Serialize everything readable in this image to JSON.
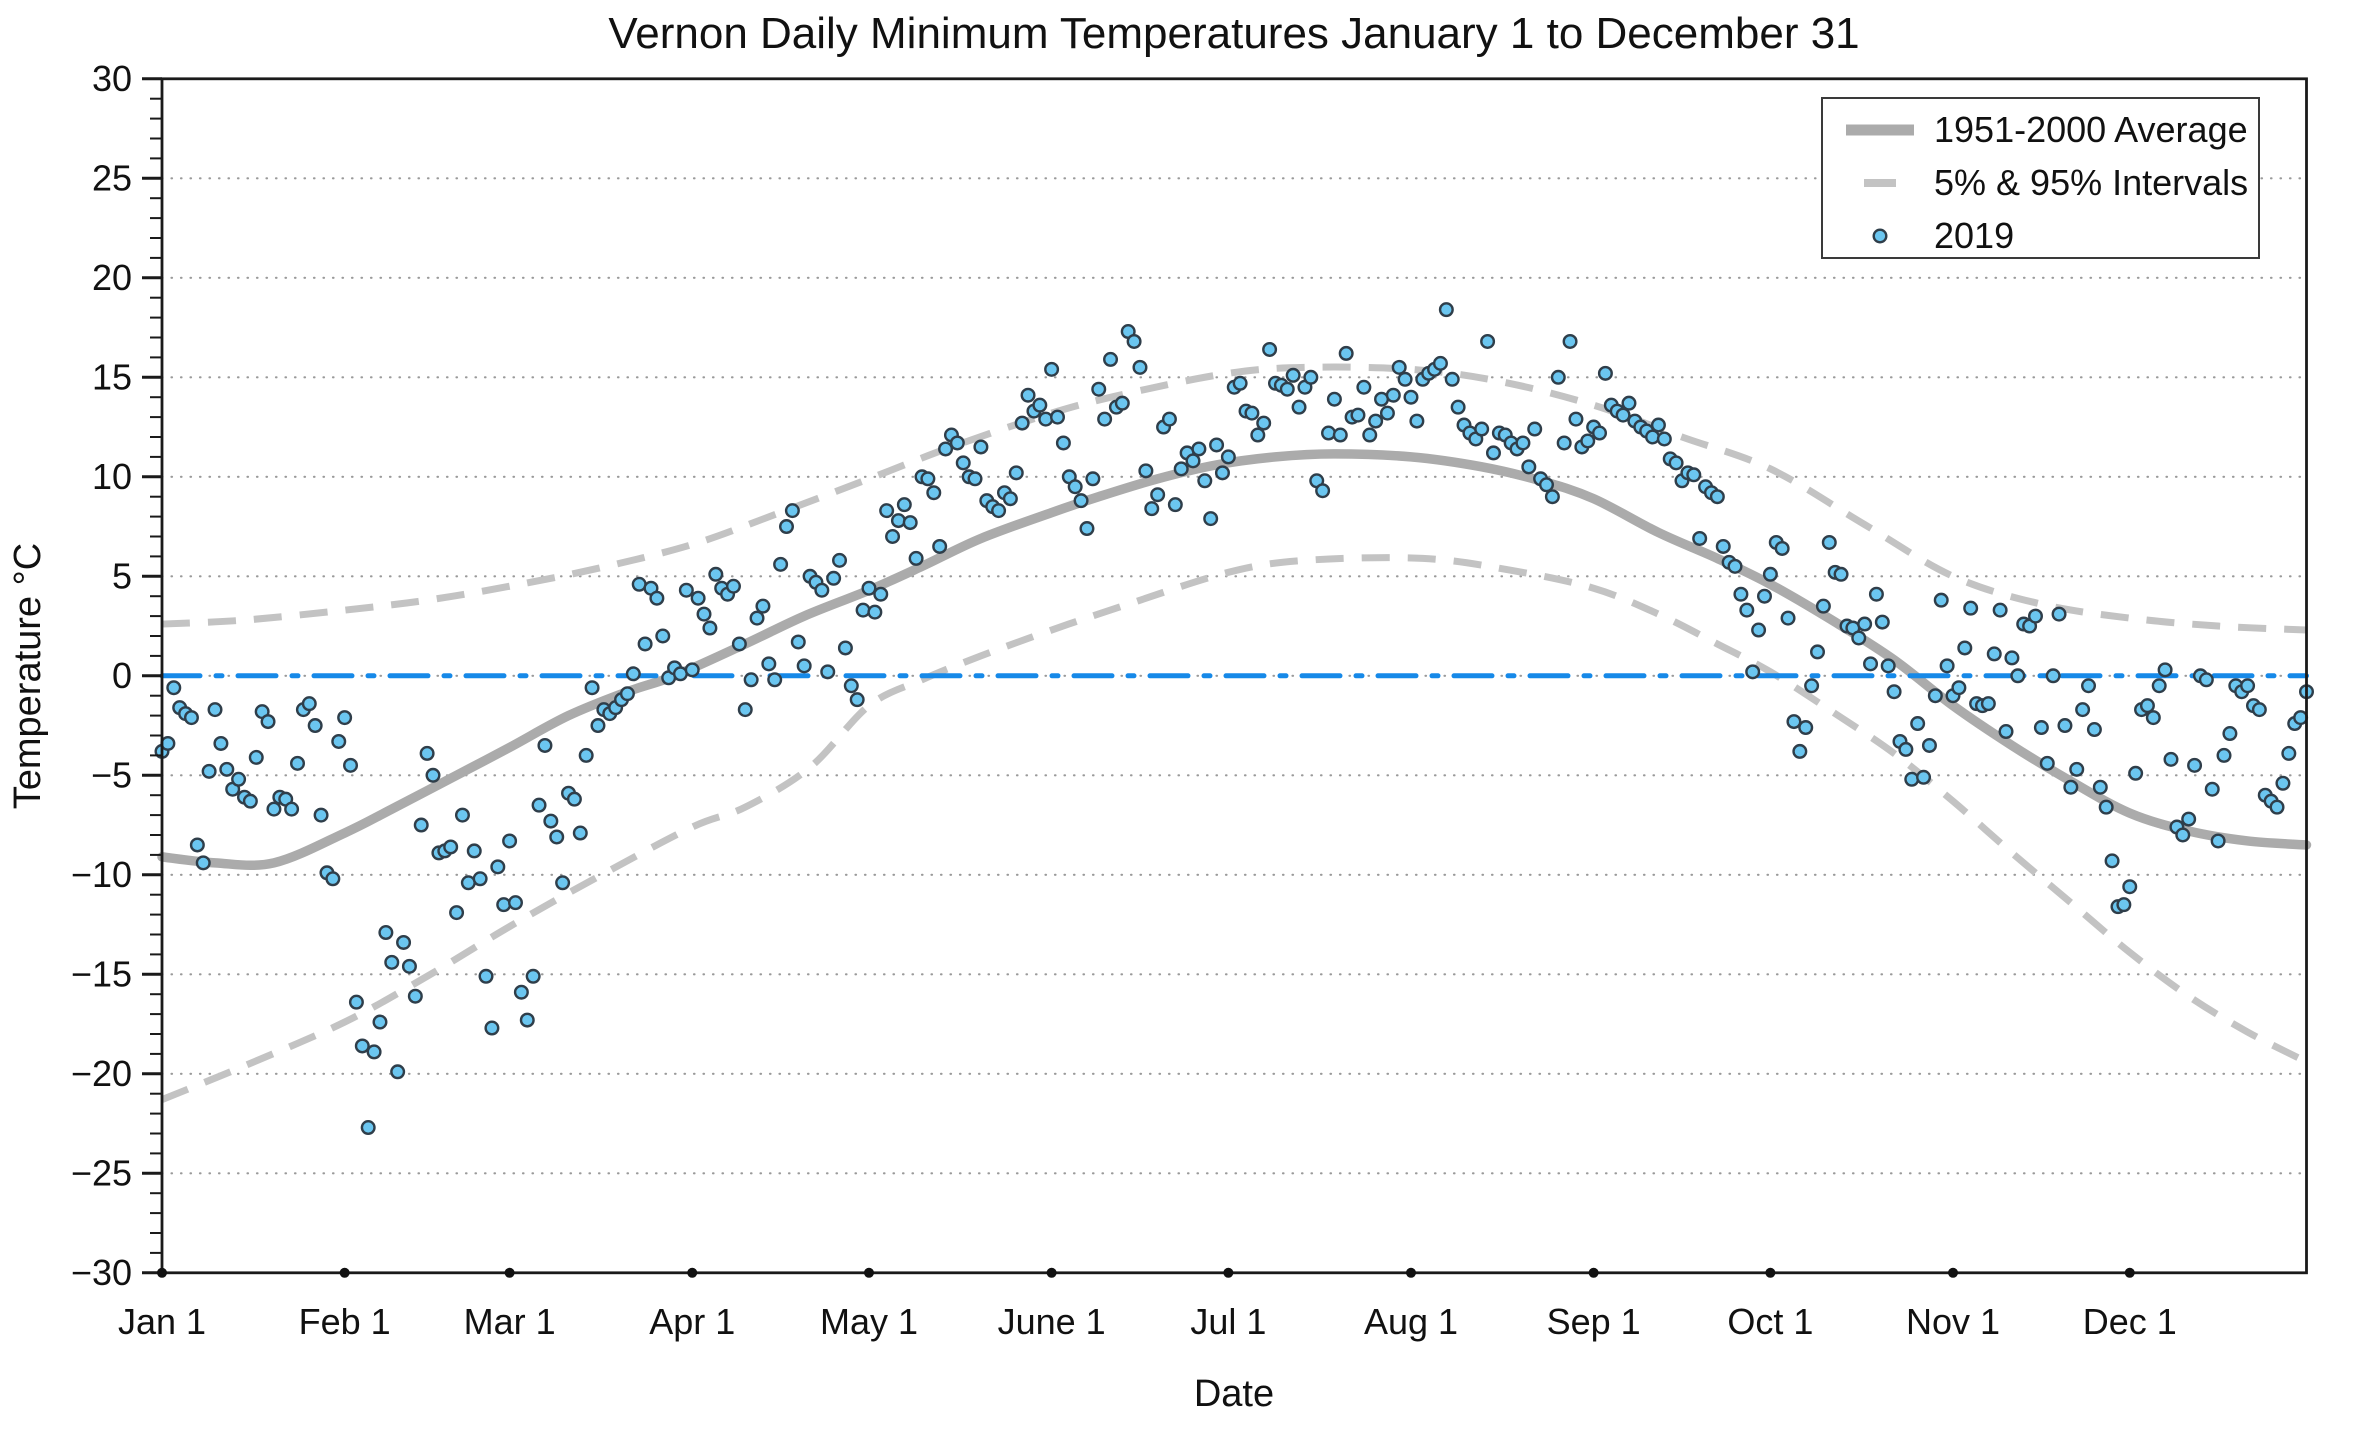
{
  "title": "Vernon Daily Minimum Temperatures January 1 to December 31",
  "legend": {
    "position": "upper right",
    "items": [
      {
        "label": "1951-2000 Average",
        "swatch": "thick-gray-line"
      },
      {
        "label": "5% & 95% Intervals",
        "swatch": "gray-dash"
      },
      {
        "label": "2019",
        "swatch": "blue-circle-marker"
      }
    ]
  },
  "colors": {
    "scatter_fill": "#6BC6F0",
    "scatter_edge": "#2F3E4A",
    "average_line": "#ABABAB",
    "interval_dash": "#C3C3C3",
    "zero_line": "#1689E8",
    "grid": "#9A9A9A",
    "axis": "#1A1A1A",
    "month_dot": "#111111",
    "text": "#111111",
    "background": "#FFFFFF"
  },
  "chart_data": {
    "type": "scatter",
    "title": "Vernon Daily Minimum Temperatures January 1 to December 31",
    "xlabel": "Date",
    "ylabel": "Temperature °C",
    "xlim_days": [
      1,
      365
    ],
    "ylim": [
      -30,
      30
    ],
    "y_major_ticks": [
      30,
      25,
      20,
      15,
      10,
      5,
      0,
      -5,
      -10,
      -15,
      -20,
      -25,
      -30
    ],
    "y_minor_tick_step": 1,
    "grid": "horizontal dotted lines at every 5 °C",
    "legend_position": "upper right",
    "x_ticks": [
      {
        "label": "Jan 1",
        "day": 1
      },
      {
        "label": "Feb 1",
        "day": 32
      },
      {
        "label": "Mar 1",
        "day": 60
      },
      {
        "label": "Apr 1",
        "day": 91
      },
      {
        "label": "May 1",
        "day": 121
      },
      {
        "label": "June 1",
        "day": 152
      },
      {
        "label": "Jul 1",
        "day": 182
      },
      {
        "label": "Aug 1",
        "day": 213
      },
      {
        "label": "Sep 1",
        "day": 244
      },
      {
        "label": "Oct 1",
        "day": 274
      },
      {
        "label": "Nov 1",
        "day": 305
      },
      {
        "label": "Dec 1",
        "day": 335
      }
    ],
    "series": [
      {
        "name": "1951-2000 Average",
        "type": "line",
        "style": "thick solid gray",
        "points": [
          [
            1,
            -9.1
          ],
          [
            10,
            -9.4
          ],
          [
            20,
            -9.4
          ],
          [
            32,
            -7.9
          ],
          [
            40,
            -6.7
          ],
          [
            51,
            -5.0
          ],
          [
            60,
            -3.6
          ],
          [
            70,
            -2.0
          ],
          [
            80,
            -0.8
          ],
          [
            88,
            0.0
          ],
          [
            100,
            1.6
          ],
          [
            110,
            3.0
          ],
          [
            121,
            4.3
          ],
          [
            130,
            5.5
          ],
          [
            140,
            6.9
          ],
          [
            152,
            8.2
          ],
          [
            160,
            9.0
          ],
          [
            170,
            9.9
          ],
          [
            180,
            10.6
          ],
          [
            190,
            11.0
          ],
          [
            200,
            11.15
          ],
          [
            213,
            11.0
          ],
          [
            225,
            10.5
          ],
          [
            235,
            9.8
          ],
          [
            244,
            8.9
          ],
          [
            255,
            7.2
          ],
          [
            265,
            5.9
          ],
          [
            274,
            4.6
          ],
          [
            285,
            2.7
          ],
          [
            295,
            0.8
          ],
          [
            305,
            -1.5
          ],
          [
            315,
            -3.5
          ],
          [
            325,
            -5.3
          ],
          [
            335,
            -6.9
          ],
          [
            345,
            -7.8
          ],
          [
            355,
            -8.3
          ],
          [
            365,
            -8.5
          ]
        ]
      },
      {
        "name": "95% Interval",
        "type": "line",
        "style": "dashed gray",
        "points": [
          [
            1,
            2.6
          ],
          [
            15,
            2.8
          ],
          [
            32,
            3.3
          ],
          [
            46,
            3.8
          ],
          [
            60,
            4.5
          ],
          [
            75,
            5.4
          ],
          [
            91,
            6.6
          ],
          [
            105,
            8.1
          ],
          [
            121,
            9.9
          ],
          [
            135,
            11.5
          ],
          [
            152,
            13.2
          ],
          [
            165,
            14.2
          ],
          [
            182,
            15.2
          ],
          [
            195,
            15.5
          ],
          [
            213,
            15.4
          ],
          [
            228,
            14.8
          ],
          [
            244,
            13.6
          ],
          [
            259,
            12.0
          ],
          [
            274,
            10.4
          ],
          [
            290,
            7.6
          ],
          [
            305,
            5.0
          ],
          [
            320,
            3.6
          ],
          [
            335,
            2.9
          ],
          [
            350,
            2.5
          ],
          [
            365,
            2.3
          ]
        ]
      },
      {
        "name": "5% Interval",
        "type": "line",
        "style": "dashed gray",
        "points": [
          [
            1,
            -21.3
          ],
          [
            15,
            -19.6
          ],
          [
            32,
            -17.4
          ],
          [
            46,
            -15.1
          ],
          [
            60,
            -12.6
          ],
          [
            75,
            -10.1
          ],
          [
            91,
            -7.6
          ],
          [
            100,
            -6.6
          ],
          [
            111,
            -4.6
          ],
          [
            121,
            -1.5
          ],
          [
            130,
            -0.2
          ],
          [
            140,
            1.0
          ],
          [
            152,
            2.3
          ],
          [
            165,
            3.6
          ],
          [
            182,
            5.2
          ],
          [
            195,
            5.8
          ],
          [
            215,
            5.9
          ],
          [
            230,
            5.3
          ],
          [
            244,
            4.4
          ],
          [
            255,
            3.1
          ],
          [
            265,
            1.6
          ],
          [
            274,
            0.2
          ],
          [
            285,
            -1.9
          ],
          [
            295,
            -3.9
          ],
          [
            305,
            -6.3
          ],
          [
            315,
            -8.9
          ],
          [
            325,
            -11.4
          ],
          [
            335,
            -13.9
          ],
          [
            345,
            -16.1
          ],
          [
            355,
            -17.9
          ],
          [
            365,
            -19.4
          ]
        ]
      },
      {
        "name": "0 °C reference",
        "type": "hline",
        "y": 0,
        "style": "blue dash-dot"
      },
      {
        "name": "2019",
        "type": "scatter",
        "marker": "circle, light blue fill, dark edge",
        "start_day": 1,
        "daily_min_c": [
          -3.8,
          -3.4,
          -0.6,
          -1.6,
          -1.9,
          -2.1,
          -8.5,
          -9.4,
          -4.8,
          -1.7,
          -3.4,
          -4.7,
          -5.7,
          -5.2,
          -6.1,
          -6.3,
          -4.1,
          -1.8,
          -2.3,
          -6.7,
          -6.1,
          -6.2,
          -6.7,
          -4.4,
          -1.7,
          -1.4,
          -2.5,
          -7.0,
          -9.9,
          -10.2,
          -3.3,
          -2.1,
          -4.5,
          -16.4,
          -18.6,
          -22.7,
          -18.9,
          -17.4,
          -12.9,
          -14.4,
          -19.9,
          -13.4,
          -14.6,
          -16.1,
          -7.5,
          -3.9,
          -5.0,
          -8.9,
          -8.8,
          -8.6,
          -11.9,
          -7.0,
          -10.4,
          -8.8,
          -10.2,
          -15.1,
          -17.7,
          -9.6,
          -11.5,
          -8.3,
          -11.4,
          -15.9,
          -17.3,
          -15.1,
          -6.5,
          -3.5,
          -7.3,
          -8.1,
          -10.4,
          -5.9,
          -6.2,
          -7.9,
          -4.0,
          -0.6,
          -2.5,
          -1.7,
          -1.9,
          -1.6,
          -1.2,
          -0.9,
          0.1,
          4.6,
          1.6,
          4.4,
          3.9,
          2.0,
          -0.1,
          0.4,
          0.1,
          4.3,
          0.3,
          3.9,
          3.1,
          2.4,
          5.1,
          4.4,
          4.1,
          4.5,
          1.6,
          -1.7,
          -0.2,
          2.9,
          3.5,
          0.6,
          -0.2,
          5.6,
          7.5,
          8.3,
          1.7,
          0.5,
          5.0,
          4.7,
          4.3,
          0.2,
          4.9,
          5.8,
          1.4,
          -0.5,
          -1.2,
          3.3,
          4.4,
          3.2,
          4.1,
          8.3,
          7.0,
          7.8,
          8.6,
          7.7,
          5.9,
          10.0,
          9.9,
          9.2,
          6.5,
          11.4,
          12.1,
          11.7,
          10.7,
          10.0,
          9.9,
          11.5,
          8.8,
          8.5,
          8.3,
          9.2,
          8.9,
          10.2,
          12.7,
          14.1,
          13.3,
          13.6,
          12.9,
          15.4,
          13.0,
          11.7,
          10.0,
          9.5,
          8.8,
          7.4,
          9.9,
          14.4,
          12.9,
          15.9,
          13.5,
          13.7,
          17.3,
          16.8,
          15.5,
          10.3,
          8.4,
          9.1,
          12.5,
          12.9,
          8.6,
          10.4,
          11.2,
          10.8,
          11.4,
          9.8,
          7.9,
          11.6,
          10.2,
          11.0,
          14.5,
          14.7,
          13.3,
          13.2,
          12.1,
          12.7,
          16.4,
          14.7,
          14.6,
          14.4,
          15.1,
          13.5,
          14.5,
          15.0,
          9.8,
          9.3,
          12.2,
          13.9,
          12.1,
          16.2,
          13.0,
          13.1,
          14.5,
          12.1,
          12.8,
          13.9,
          13.2,
          14.1,
          15.5,
          14.9,
          14.0,
          12.8,
          14.9,
          15.2,
          15.4,
          15.7,
          18.4,
          14.9,
          13.5,
          12.6,
          12.2,
          11.9,
          12.4,
          16.8,
          11.2,
          12.2,
          12.1,
          11.7,
          11.4,
          11.7,
          10.5,
          12.4,
          9.9,
          9.6,
          9.0,
          15.0,
          11.7,
          16.8,
          12.9,
          11.5,
          11.8,
          12.5,
          12.2,
          15.2,
          13.6,
          13.3,
          13.1,
          13.7,
          12.8,
          12.5,
          12.3,
          12.0,
          12.6,
          11.9,
          10.9,
          10.7,
          9.8,
          10.2,
          10.1,
          6.9,
          9.5,
          9.2,
          9.0,
          6.5,
          5.7,
          5.5,
          4.1,
          3.3,
          0.2,
          2.3,
          4.0,
          5.1,
          6.7,
          6.4,
          2.9,
          -2.3,
          -3.8,
          -2.6,
          -0.5,
          1.2,
          3.5,
          6.7,
          5.2,
          5.1,
          2.5,
          2.4,
          1.9,
          2.6,
          0.6,
          4.1,
          2.7,
          0.5,
          -0.8,
          -3.3,
          -3.7,
          -5.2,
          -2.4,
          -5.1,
          -3.5,
          -1.0,
          3.8,
          0.5,
          -1.0,
          -0.6,
          1.4,
          3.4,
          -1.4,
          -1.5,
          -1.4,
          1.1,
          3.3,
          -2.8,
          0.9,
          0.0,
          2.6,
          2.5,
          3.0,
          -2.6,
          -4.4,
          0.0,
          3.1,
          -2.5,
          -5.6,
          -4.7,
          -1.7,
          -0.5,
          -2.7,
          -5.6,
          -6.6,
          -9.3,
          -11.6,
          -11.5,
          -10.6,
          -4.9,
          -1.7,
          -1.5,
          -2.1,
          -0.5,
          0.3,
          -4.2,
          -7.6,
          -8.0,
          -7.2,
          -4.5,
          0.0,
          -0.2,
          -5.7,
          -8.3,
          -4.0,
          -2.9,
          -0.5,
          -0.8,
          -0.5,
          -1.5,
          -1.7,
          -6.0,
          -6.3,
          -6.6,
          -5.4,
          -3.9,
          -2.4,
          -2.1,
          -0.8
        ]
      }
    ]
  }
}
